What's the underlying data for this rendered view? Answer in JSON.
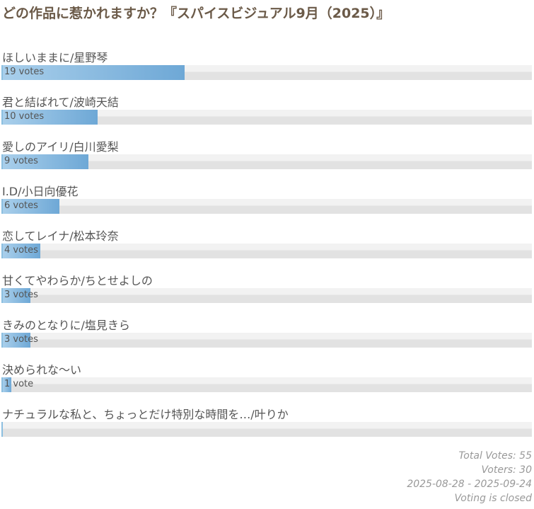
{
  "title": "どの作品に惹かれますか？『スパイスビジュアル9月（2025）』",
  "options": [
    {
      "label": "ほしいままに/星野琴",
      "votes": 19,
      "votes_label": "19 votes"
    },
    {
      "label": "君と結ばれて/波崎天結",
      "votes": 10,
      "votes_label": "10 votes"
    },
    {
      "label": "愛しのアイリ/白川愛梨",
      "votes": 9,
      "votes_label": "9 votes"
    },
    {
      "label": "I.D/小日向優花",
      "votes": 6,
      "votes_label": "6 votes"
    },
    {
      "label": "恋してレイナ/松本玲奈",
      "votes": 4,
      "votes_label": "4 votes"
    },
    {
      "label": "甘くてやわらか/ちとせよしの",
      "votes": 3,
      "votes_label": "3 votes"
    },
    {
      "label": "きみのとなりに/塩見きら",
      "votes": 3,
      "votes_label": "3 votes"
    },
    {
      "label": "決められな～い",
      "votes": 1,
      "votes_label": "1 vote"
    },
    {
      "label": "ナチュラルな私と、ちょっとだけ特別な時間を…/叶りか",
      "votes": 0
    }
  ],
  "footer": {
    "total_votes": {
      "label": "Total Votes:",
      "value": 55
    },
    "voters": {
      "label": "Voters:",
      "value": 30
    },
    "date_range": "2025-08-28 - 2025-09-24",
    "status": "Voting is closed"
  }
}
